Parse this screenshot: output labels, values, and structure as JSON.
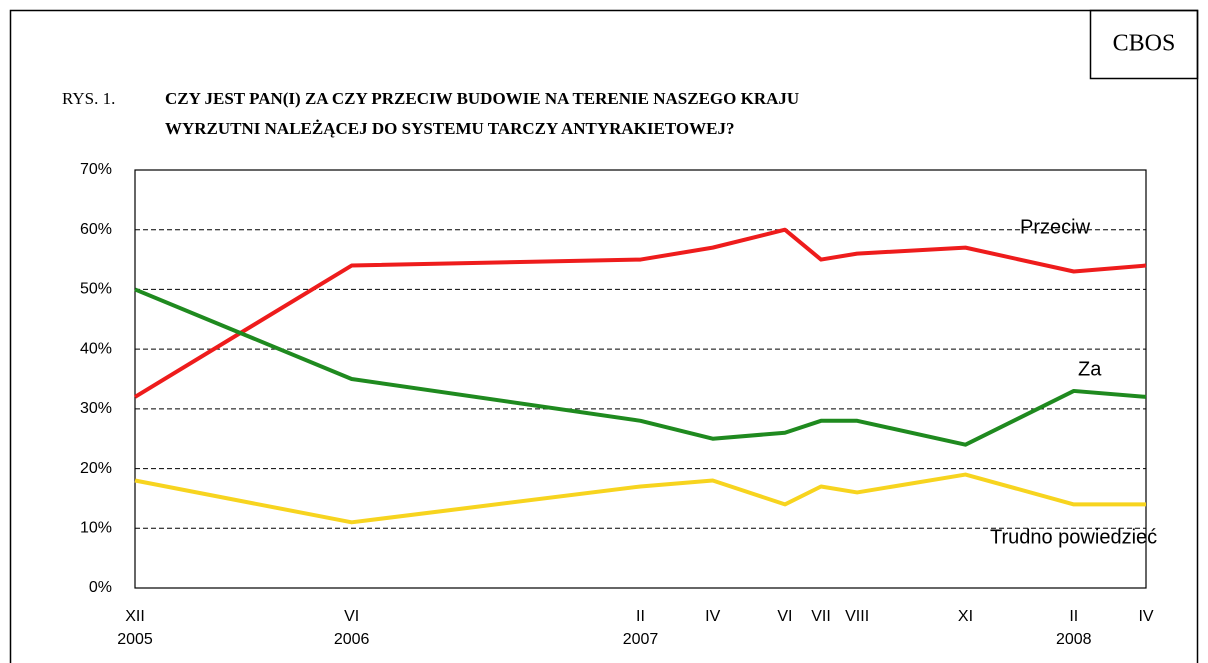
{
  "chart_data": {
    "type": "line",
    "source": "CBOS",
    "figure_label": "RYS. 1.",
    "title": [
      "CZY JEST PAN(I) ZA CZY PRZECIW BUDOWIE NA TERENIE NASZEGO KRAJU",
      "WYRZUTNI NALEŻĄCEJ DO SYSTEMU TARCZY ANTYRAKIETOWEJ?"
    ],
    "categories": [
      "XII",
      "VI",
      "II",
      "IV",
      "VI",
      "VII",
      "VIII",
      "XI",
      "II",
      "IV"
    ],
    "years": [
      "2005",
      "2006",
      "2007",
      null,
      null,
      null,
      null,
      null,
      "2008",
      null
    ],
    "series": [
      {
        "name": "Przeciw",
        "color": "#ee1c1c",
        "values": [
          32,
          54,
          55,
          57,
          60,
          55,
          56,
          57,
          53,
          54
        ]
      },
      {
        "name": "Za",
        "color": "#1f8a1f",
        "values": [
          50,
          35,
          28,
          25,
          26,
          28,
          28,
          24,
          33,
          32
        ]
      },
      {
        "name": "Trudno powiedzieć",
        "color": "#f7d41f",
        "values": [
          18,
          11,
          17,
          18,
          14,
          17,
          16,
          19,
          14,
          14
        ]
      }
    ],
    "ylim": [
      0,
      70
    ],
    "yticks": [
      {
        "value": 0,
        "label": "0%"
      },
      {
        "value": 10,
        "label": "10%"
      },
      {
        "value": 20,
        "label": "20%"
      },
      {
        "value": 30,
        "label": "30%"
      },
      {
        "value": 40,
        "label": "40%"
      },
      {
        "value": 50,
        "label": "50%"
      },
      {
        "value": 60,
        "label": "60%"
      },
      {
        "value": 70,
        "label": "70%"
      }
    ],
    "grid": true
  }
}
